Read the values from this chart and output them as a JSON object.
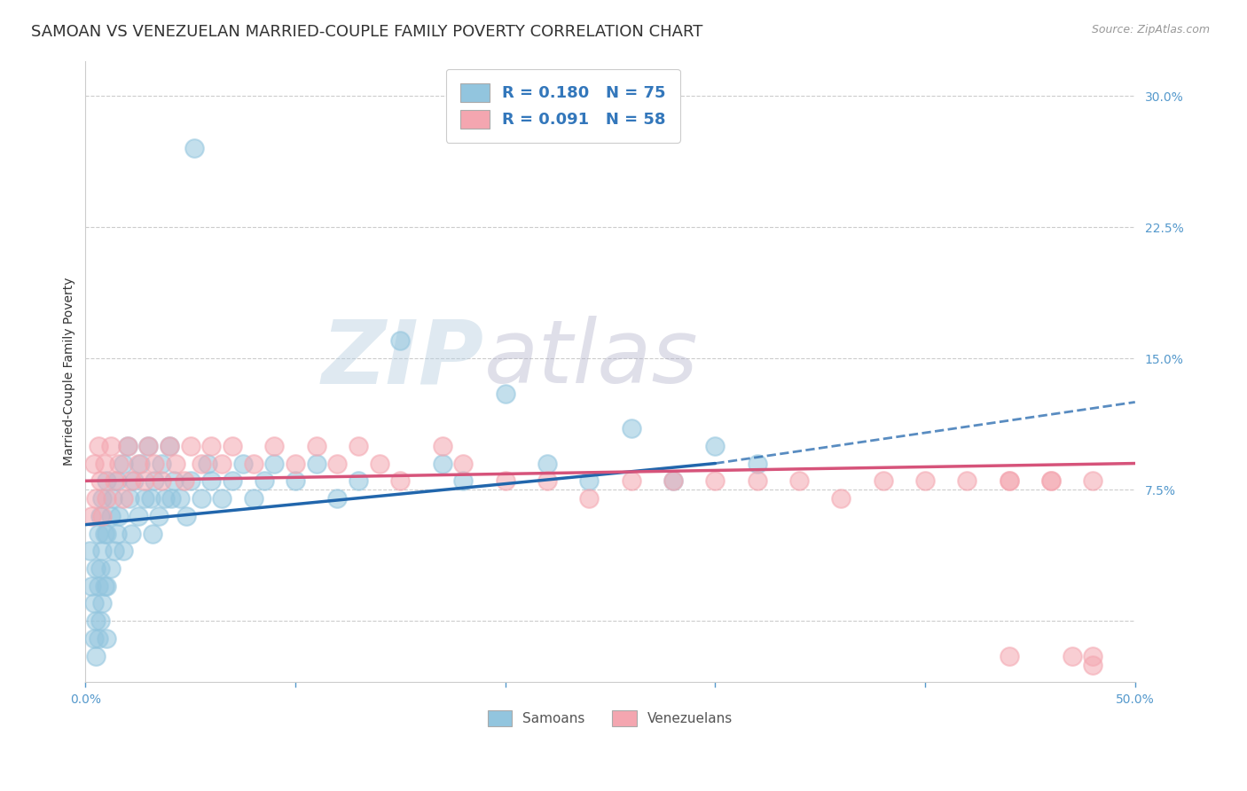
{
  "title": "SAMOAN VS VENEZUELAN MARRIED-COUPLE FAMILY POVERTY CORRELATION CHART",
  "source": "Source: ZipAtlas.com",
  "ylabel": "Married-Couple Family Poverty",
  "xlim": [
    0.0,
    0.5
  ],
  "ylim": [
    -0.035,
    0.32
  ],
  "samoan_color": "#92c5de",
  "venezuelan_color": "#f4a6b0",
  "samoan_line_color": "#2166ac",
  "venezuelan_line_color": "#d6537a",
  "background_color": "#ffffff",
  "grid_color": "#cccccc",
  "tick_color": "#5599cc",
  "title_color": "#333333",
  "title_fontsize": 13,
  "axis_label_fontsize": 10,
  "tick_fontsize": 10,
  "legend_fontsize": 12,
  "watermark_zip_color": "#c8d8e8",
  "watermark_atlas_color": "#c8c8d8",
  "samoan_x": [
    0.002,
    0.003,
    0.004,
    0.004,
    0.005,
    0.005,
    0.005,
    0.006,
    0.006,
    0.006,
    0.007,
    0.007,
    0.007,
    0.008,
    0.008,
    0.008,
    0.009,
    0.009,
    0.01,
    0.01,
    0.01,
    0.01,
    0.012,
    0.012,
    0.013,
    0.014,
    0.015,
    0.015,
    0.016,
    0.018,
    0.018,
    0.02,
    0.021,
    0.022,
    0.023,
    0.025,
    0.026,
    0.028,
    0.03,
    0.031,
    0.032,
    0.033,
    0.035,
    0.036,
    0.038,
    0.04,
    0.041,
    0.042,
    0.045,
    0.048,
    0.05,
    0.052,
    0.055,
    0.058,
    0.06,
    0.065,
    0.07,
    0.075,
    0.08,
    0.085,
    0.09,
    0.1,
    0.11,
    0.12,
    0.13,
    0.15,
    0.17,
    0.18,
    0.2,
    0.22,
    0.24,
    0.26,
    0.28,
    0.3,
    0.32
  ],
  "samoan_y": [
    0.04,
    0.02,
    0.01,
    -0.01,
    0.03,
    0.0,
    -0.02,
    0.05,
    0.02,
    -0.01,
    0.06,
    0.03,
    0.0,
    0.07,
    0.04,
    0.01,
    0.05,
    0.02,
    0.08,
    0.05,
    0.02,
    -0.01,
    0.06,
    0.03,
    0.07,
    0.04,
    0.08,
    0.05,
    0.06,
    0.09,
    0.04,
    0.1,
    0.07,
    0.05,
    0.08,
    0.06,
    0.09,
    0.07,
    0.1,
    0.07,
    0.05,
    0.08,
    0.06,
    0.09,
    0.07,
    0.1,
    0.07,
    0.08,
    0.07,
    0.06,
    0.08,
    0.27,
    0.07,
    0.09,
    0.08,
    0.07,
    0.08,
    0.09,
    0.07,
    0.08,
    0.09,
    0.08,
    0.09,
    0.07,
    0.08,
    0.16,
    0.09,
    0.08,
    0.13,
    0.09,
    0.08,
    0.11,
    0.08,
    0.1,
    0.09
  ],
  "venezuelan_x": [
    0.003,
    0.004,
    0.005,
    0.006,
    0.007,
    0.008,
    0.009,
    0.01,
    0.012,
    0.014,
    0.016,
    0.018,
    0.02,
    0.022,
    0.025,
    0.028,
    0.03,
    0.033,
    0.036,
    0.04,
    0.043,
    0.047,
    0.05,
    0.055,
    0.06,
    0.065,
    0.07,
    0.08,
    0.09,
    0.1,
    0.11,
    0.12,
    0.13,
    0.14,
    0.15,
    0.17,
    0.18,
    0.2,
    0.22,
    0.24,
    0.26,
    0.28,
    0.3,
    0.32,
    0.34,
    0.36,
    0.38,
    0.4,
    0.42,
    0.44,
    0.46,
    0.48,
    0.48,
    0.48,
    0.47,
    0.46,
    0.44,
    0.44
  ],
  "venezuelan_y": [
    0.06,
    0.09,
    0.07,
    0.1,
    0.08,
    0.06,
    0.09,
    0.07,
    0.1,
    0.08,
    0.09,
    0.07,
    0.1,
    0.08,
    0.09,
    0.08,
    0.1,
    0.09,
    0.08,
    0.1,
    0.09,
    0.08,
    0.1,
    0.09,
    0.1,
    0.09,
    0.1,
    0.09,
    0.1,
    0.09,
    0.1,
    0.09,
    0.1,
    0.09,
    0.08,
    0.1,
    0.09,
    0.08,
    0.08,
    0.07,
    0.08,
    0.08,
    0.08,
    0.08,
    0.08,
    0.07,
    0.08,
    0.08,
    0.08,
    0.08,
    0.08,
    0.08,
    -0.02,
    -0.025,
    -0.02,
    0.08,
    -0.02,
    0.08
  ],
  "sam_line_x0": 0.0,
  "sam_line_x_solid_end": 0.3,
  "sam_line_x1": 0.5,
  "sam_line_y0": 0.055,
  "sam_line_y_solid_end": 0.09,
  "sam_line_y1": 0.125,
  "ven_line_x0": 0.0,
  "ven_line_x1": 0.5,
  "ven_line_y0": 0.08,
  "ven_line_y1": 0.09
}
